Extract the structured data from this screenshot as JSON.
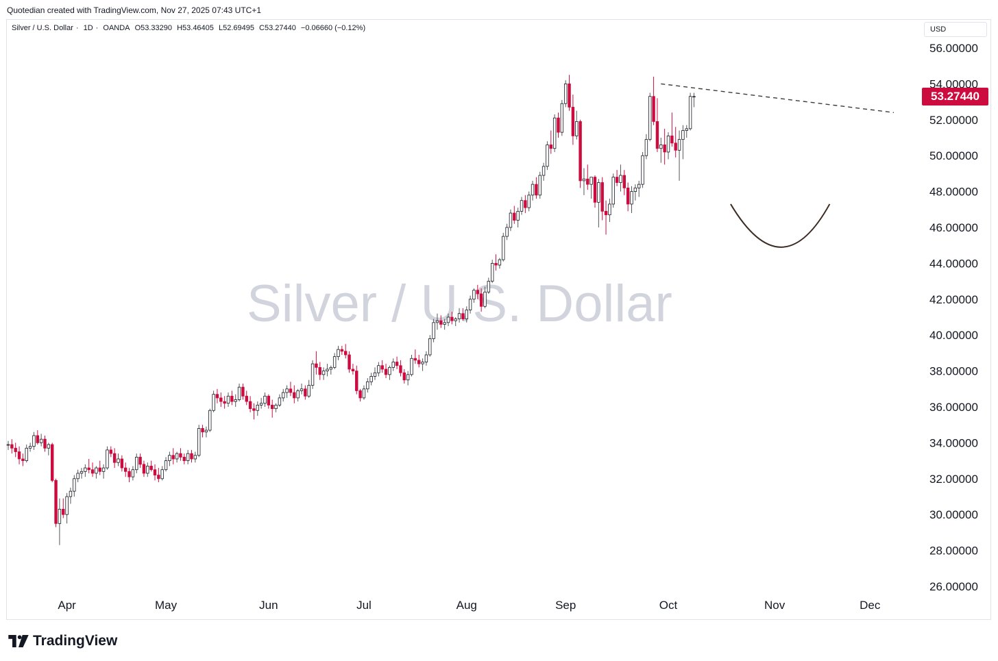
{
  "header": {
    "credit": "Quotedian created with TradingView.com, Nov 27, 2025 07:43 UTC+1"
  },
  "symbol": {
    "name": "Silver / U.S. Dollar",
    "interval": "1D",
    "exchange": "OANDA",
    "open": "O53.33290",
    "high": "H53.46405",
    "low": "L52.69495",
    "close": "C53.27440",
    "change": "−0.06660 (−0.12%)"
  },
  "currency": "USD",
  "watermark": "Silver / U.S. Dollar",
  "last_price": "53.27440",
  "brand": {
    "name": "TradingView",
    "logo_icon": "tradingview-logo-icon"
  },
  "colors": {
    "up": "#ffffff",
    "up_border": "#131722",
    "down": "#cc0b3f",
    "accent": "#cc0b3f"
  },
  "chart_data": {
    "type": "candlestick",
    "price_ticks": [
      "56.00000",
      "54.00000",
      "52.00000",
      "50.00000",
      "48.00000",
      "46.00000",
      "44.00000",
      "42.00000",
      "40.00000",
      "38.00000",
      "36.00000",
      "34.00000",
      "32.00000",
      "30.00000",
      "28.00000",
      "26.00000"
    ],
    "ylim": [
      25,
      57
    ],
    "months": [
      {
        "label": "Apr",
        "index": 16
      },
      {
        "label": "May",
        "index": 43
      },
      {
        "label": "Jun",
        "index": 71
      },
      {
        "label": "Jul",
        "index": 97
      },
      {
        "label": "Aug",
        "index": 125
      },
      {
        "label": "Sep",
        "index": 152
      },
      {
        "label": "Oct",
        "index": 180
      },
      {
        "label": "Nov",
        "index": 209
      },
      {
        "label": "Dec",
        "index": 235
      }
    ],
    "candles": [
      [
        33.9,
        34.1,
        33.6,
        33.9
      ],
      [
        33.9,
        34.2,
        33.4,
        33.7
      ],
      [
        33.7,
        34.0,
        33.2,
        33.5
      ],
      [
        33.5,
        33.8,
        32.8,
        33.1
      ],
      [
        33.1,
        33.4,
        32.7,
        33.0
      ],
      [
        33.0,
        33.9,
        32.9,
        33.7
      ],
      [
        33.7,
        34.0,
        33.5,
        33.8
      ],
      [
        33.8,
        34.6,
        33.6,
        34.4
      ],
      [
        34.4,
        34.7,
        33.9,
        34.0
      ],
      [
        34.0,
        34.5,
        33.8,
        34.2
      ],
      [
        34.2,
        34.4,
        33.5,
        33.7
      ],
      [
        33.7,
        34.0,
        33.3,
        33.9
      ],
      [
        33.9,
        34.0,
        31.8,
        31.9
      ],
      [
        31.9,
        32.0,
        29.3,
        29.5
      ],
      [
        29.5,
        30.9,
        28.3,
        30.3
      ],
      [
        30.3,
        30.9,
        29.8,
        30.0
      ],
      [
        30.0,
        31.2,
        29.5,
        31.0
      ],
      [
        31.0,
        31.5,
        30.6,
        31.3
      ],
      [
        31.3,
        32.2,
        31.0,
        32.0
      ],
      [
        32.0,
        32.5,
        31.8,
        32.3
      ],
      [
        32.3,
        32.6,
        32.0,
        32.4
      ],
      [
        32.4,
        32.8,
        32.1,
        32.6
      ],
      [
        32.6,
        33.1,
        32.3,
        32.5
      ],
      [
        32.5,
        32.9,
        32.1,
        32.3
      ],
      [
        32.3,
        32.7,
        32.0,
        32.6
      ],
      [
        32.6,
        33.0,
        32.2,
        32.4
      ],
      [
        32.4,
        32.8,
        32.0,
        32.6
      ],
      [
        32.6,
        33.8,
        32.5,
        33.6
      ],
      [
        33.6,
        33.8,
        33.2,
        33.4
      ],
      [
        33.4,
        33.7,
        32.6,
        32.9
      ],
      [
        32.9,
        33.4,
        32.7,
        33.1
      ],
      [
        33.1,
        33.3,
        32.4,
        32.6
      ],
      [
        32.6,
        32.9,
        32.1,
        32.4
      ],
      [
        32.4,
        32.6,
        31.8,
        32.1
      ],
      [
        32.1,
        32.7,
        31.9,
        32.5
      ],
      [
        32.5,
        33.4,
        32.3,
        33.2
      ],
      [
        33.2,
        33.4,
        32.6,
        32.8
      ],
      [
        32.8,
        33.0,
        32.1,
        32.3
      ],
      [
        32.3,
        32.9,
        32.1,
        32.7
      ],
      [
        32.7,
        33.0,
        32.4,
        32.5
      ],
      [
        32.5,
        32.8,
        31.9,
        32.2
      ],
      [
        32.2,
        32.6,
        31.8,
        32.0
      ],
      [
        32.0,
        32.7,
        31.9,
        32.5
      ],
      [
        32.5,
        33.2,
        32.4,
        33.0
      ],
      [
        33.0,
        33.5,
        32.7,
        33.3
      ],
      [
        33.3,
        33.7,
        32.8,
        33.1
      ],
      [
        33.1,
        33.5,
        32.9,
        33.4
      ],
      [
        33.4,
        33.7,
        33.0,
        33.2
      ],
      [
        33.2,
        33.4,
        32.8,
        33.0
      ],
      [
        33.0,
        33.6,
        32.8,
        33.4
      ],
      [
        33.4,
        33.6,
        32.9,
        33.1
      ],
      [
        33.1,
        33.5,
        32.9,
        33.3
      ],
      [
        33.3,
        35.0,
        33.2,
        34.8
      ],
      [
        34.8,
        35.0,
        34.3,
        34.6
      ],
      [
        34.6,
        34.9,
        34.3,
        34.7
      ],
      [
        34.7,
        35.9,
        34.6,
        35.8
      ],
      [
        35.8,
        36.9,
        35.7,
        36.7
      ],
      [
        36.7,
        37.0,
        36.2,
        36.5
      ],
      [
        36.5,
        36.8,
        36.0,
        36.3
      ],
      [
        36.3,
        36.6,
        35.9,
        36.2
      ],
      [
        36.2,
        36.8,
        36.0,
        36.6
      ],
      [
        36.6,
        36.9,
        36.1,
        36.3
      ],
      [
        36.3,
        36.7,
        36.0,
        36.4
      ],
      [
        36.4,
        37.3,
        36.3,
        37.1
      ],
      [
        37.1,
        37.3,
        36.4,
        36.6
      ],
      [
        36.6,
        36.9,
        36.1,
        36.3
      ],
      [
        36.3,
        36.6,
        35.7,
        35.9
      ],
      [
        35.9,
        36.2,
        35.3,
        35.8
      ],
      [
        35.8,
        36.3,
        35.5,
        36.1
      ],
      [
        36.1,
        36.5,
        35.9,
        36.2
      ],
      [
        36.2,
        36.8,
        36.0,
        36.6
      ],
      [
        36.6,
        36.7,
        35.9,
        36.1
      ],
      [
        36.1,
        36.4,
        35.4,
        35.9
      ],
      [
        35.9,
        36.2,
        35.7,
        36.1
      ],
      [
        36.1,
        36.7,
        36.0,
        36.5
      ],
      [
        36.5,
        37.0,
        36.3,
        36.8
      ],
      [
        36.8,
        37.2,
        36.5,
        37.0
      ],
      [
        37.0,
        37.4,
        36.6,
        36.8
      ],
      [
        36.8,
        37.2,
        36.2,
        36.5
      ],
      [
        36.5,
        37.0,
        36.3,
        36.9
      ],
      [
        36.9,
        37.3,
        36.7,
        37.0
      ],
      [
        37.0,
        37.2,
        36.4,
        36.6
      ],
      [
        36.6,
        37.5,
        36.5,
        37.2
      ],
      [
        37.2,
        38.6,
        37.0,
        38.4
      ],
      [
        38.4,
        39.1,
        37.8,
        38.2
      ],
      [
        38.2,
        38.5,
        37.5,
        37.8
      ],
      [
        37.8,
        38.2,
        37.5,
        38.0
      ],
      [
        38.0,
        38.4,
        37.7,
        38.1
      ],
      [
        38.1,
        38.3,
        37.8,
        38.2
      ],
      [
        38.2,
        39.0,
        38.1,
        38.8
      ],
      [
        38.8,
        39.4,
        38.6,
        39.2
      ],
      [
        39.2,
        39.4,
        38.9,
        39.1
      ],
      [
        39.1,
        39.5,
        38.7,
        38.9
      ],
      [
        38.9,
        39.1,
        37.9,
        38.1
      ],
      [
        38.1,
        38.4,
        37.8,
        38.0
      ],
      [
        38.0,
        38.3,
        36.7,
        36.9
      ],
      [
        36.9,
        37.0,
        36.3,
        36.5
      ],
      [
        36.5,
        37.2,
        36.4,
        37.0
      ],
      [
        37.0,
        37.6,
        36.8,
        37.4
      ],
      [
        37.4,
        37.9,
        37.2,
        37.7
      ],
      [
        37.7,
        38.2,
        37.5,
        37.9
      ],
      [
        37.9,
        38.5,
        37.7,
        38.3
      ],
      [
        38.3,
        38.6,
        37.9,
        38.1
      ],
      [
        38.1,
        38.4,
        37.6,
        37.8
      ],
      [
        37.8,
        38.3,
        37.5,
        38.2
      ],
      [
        38.2,
        38.7,
        38.0,
        38.5
      ],
      [
        38.5,
        38.8,
        38.1,
        38.3
      ],
      [
        38.3,
        38.6,
        37.7,
        37.9
      ],
      [
        37.9,
        38.1,
        37.3,
        37.5
      ],
      [
        37.5,
        38.0,
        37.2,
        37.8
      ],
      [
        37.8,
        38.9,
        37.7,
        38.7
      ],
      [
        38.7,
        39.2,
        38.4,
        38.6
      ],
      [
        38.6,
        38.9,
        38.2,
        38.4
      ],
      [
        38.4,
        38.7,
        38.0,
        38.5
      ],
      [
        38.5,
        39.1,
        38.3,
        38.9
      ],
      [
        38.9,
        40.0,
        38.8,
        39.8
      ],
      [
        39.8,
        40.9,
        39.6,
        40.7
      ],
      [
        40.7,
        41.2,
        40.3,
        40.8
      ],
      [
        40.8,
        41.1,
        40.4,
        40.6
      ],
      [
        40.6,
        40.9,
        40.3,
        40.7
      ],
      [
        40.7,
        41.2,
        40.5,
        41.0
      ],
      [
        41.0,
        41.3,
        40.6,
        40.8
      ],
      [
        40.8,
        41.0,
        40.5,
        40.9
      ],
      [
        40.9,
        41.5,
        40.7,
        41.2
      ],
      [
        41.2,
        41.5,
        40.8,
        40.9
      ],
      [
        40.9,
        41.6,
        40.7,
        41.4
      ],
      [
        41.4,
        42.2,
        41.2,
        42.0
      ],
      [
        42.0,
        42.6,
        41.8,
        42.5
      ],
      [
        42.5,
        42.8,
        42.0,
        42.3
      ],
      [
        42.3,
        42.6,
        41.3,
        41.6
      ],
      [
        41.6,
        42.7,
        41.5,
        42.4
      ],
      [
        42.4,
        43.2,
        42.3,
        43.0
      ],
      [
        43.0,
        44.2,
        42.9,
        44.0
      ],
      [
        44.0,
        44.5,
        43.6,
        43.9
      ],
      [
        43.9,
        44.3,
        43.7,
        44.2
      ],
      [
        44.2,
        45.7,
        44.1,
        45.5
      ],
      [
        45.5,
        46.2,
        45.3,
        46.0
      ],
      [
        46.0,
        47.0,
        45.8,
        46.8
      ],
      [
        46.8,
        47.2,
        46.2,
        46.4
      ],
      [
        46.4,
        47.1,
        46.0,
        46.9
      ],
      [
        46.9,
        47.7,
        46.7,
        47.5
      ],
      [
        47.5,
        47.8,
        46.8,
        47.1
      ],
      [
        47.1,
        48.0,
        46.9,
        47.8
      ],
      [
        47.8,
        48.6,
        47.5,
        48.4
      ],
      [
        48.4,
        48.8,
        47.6,
        47.8
      ],
      [
        47.8,
        49.1,
        47.6,
        48.9
      ],
      [
        48.9,
        49.6,
        48.6,
        49.4
      ],
      [
        49.4,
        50.8,
        49.2,
        50.6
      ],
      [
        50.6,
        51.4,
        50.1,
        50.4
      ],
      [
        50.4,
        52.3,
        50.2,
        52.1
      ],
      [
        52.1,
        52.4,
        51.0,
        51.3
      ],
      [
        51.3,
        53.1,
        51.1,
        52.9
      ],
      [
        52.9,
        54.2,
        52.7,
        54.0
      ],
      [
        54.0,
        54.5,
        52.5,
        52.7
      ],
      [
        52.7,
        53.4,
        50.6,
        51.1
      ],
      [
        51.1,
        52.5,
        50.9,
        51.9
      ],
      [
        51.9,
        52.0,
        48.2,
        48.6
      ],
      [
        48.6,
        49.3,
        47.8,
        48.7
      ],
      [
        48.7,
        49.5,
        48.1,
        48.4
      ],
      [
        48.4,
        48.7,
        47.6,
        48.8
      ],
      [
        48.8,
        48.9,
        47.1,
        47.4
      ],
      [
        47.4,
        48.7,
        46.0,
        48.5
      ],
      [
        48.5,
        48.8,
        46.4,
        46.9
      ],
      [
        46.9,
        47.5,
        45.6,
        46.7
      ],
      [
        46.7,
        47.6,
        46.3,
        47.3
      ],
      [
        47.3,
        49.0,
        47.1,
        48.8
      ],
      [
        48.8,
        49.2,
        48.3,
        48.5
      ],
      [
        48.5,
        49.5,
        48.0,
        48.9
      ],
      [
        48.9,
        49.2,
        47.8,
        48.2
      ],
      [
        48.2,
        48.5,
        46.9,
        47.3
      ],
      [
        47.3,
        48.3,
        46.8,
        48.0
      ],
      [
        48.0,
        48.4,
        47.5,
        48.2
      ],
      [
        48.2,
        48.6,
        47.7,
        48.4
      ],
      [
        48.4,
        50.2,
        48.2,
        50.0
      ],
      [
        50.0,
        51.2,
        49.8,
        50.9
      ],
      [
        50.9,
        53.5,
        50.8,
        53.3
      ],
      [
        53.3,
        54.4,
        51.7,
        51.9
      ],
      [
        51.9,
        53.2,
        50.2,
        50.4
      ],
      [
        50.4,
        51.0,
        49.6,
        50.6
      ],
      [
        50.6,
        51.5,
        49.5,
        50.2
      ],
      [
        50.2,
        51.3,
        49.8,
        51.1
      ],
      [
        51.1,
        52.4,
        50.5,
        50.7
      ],
      [
        50.7,
        51.6,
        49.9,
        50.3
      ],
      [
        50.3,
        51.4,
        48.6,
        50.9
      ],
      [
        50.9,
        51.7,
        49.8,
        51.4
      ],
      [
        51.4,
        51.7,
        51.0,
        51.5
      ],
      [
        51.5,
        53.5,
        51.4,
        53.3
      ],
      [
        53.3,
        53.5,
        52.7,
        53.3
      ]
    ]
  }
}
